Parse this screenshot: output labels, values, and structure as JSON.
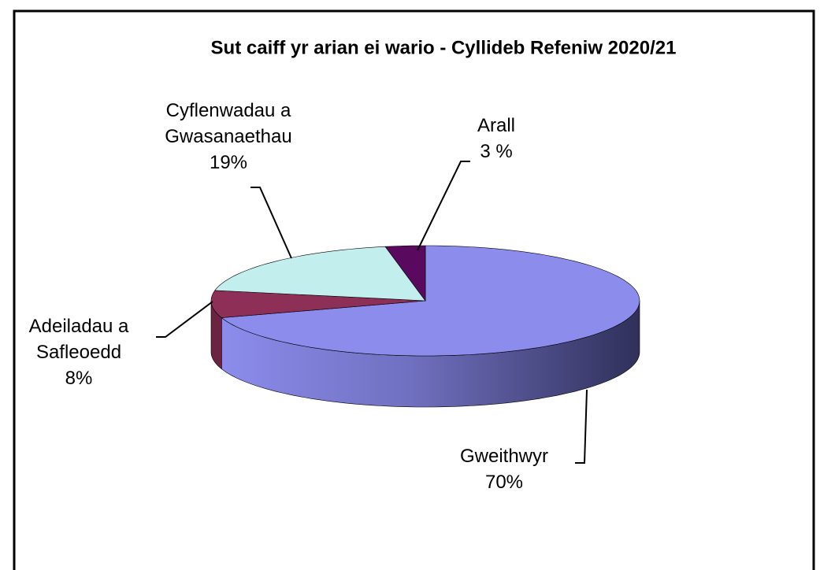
{
  "chart_data": {
    "type": "pie3d",
    "title": "Sut caiff yr arian ei wario - Cyllideb Refeniw 2020/21",
    "categories": [
      "Gweithwyr",
      "Adeiladau a Safleoedd",
      "Cyflenwadau a Gwasanaethau",
      "Arall"
    ],
    "values": [
      70,
      8,
      19,
      3
    ],
    "value_labels": [
      "70%",
      "8%",
      "19%",
      "3 %"
    ],
    "colors": [
      "#8c8cec",
      "#8e2f58",
      "#c2eeee",
      "#5a0a5e"
    ]
  }
}
